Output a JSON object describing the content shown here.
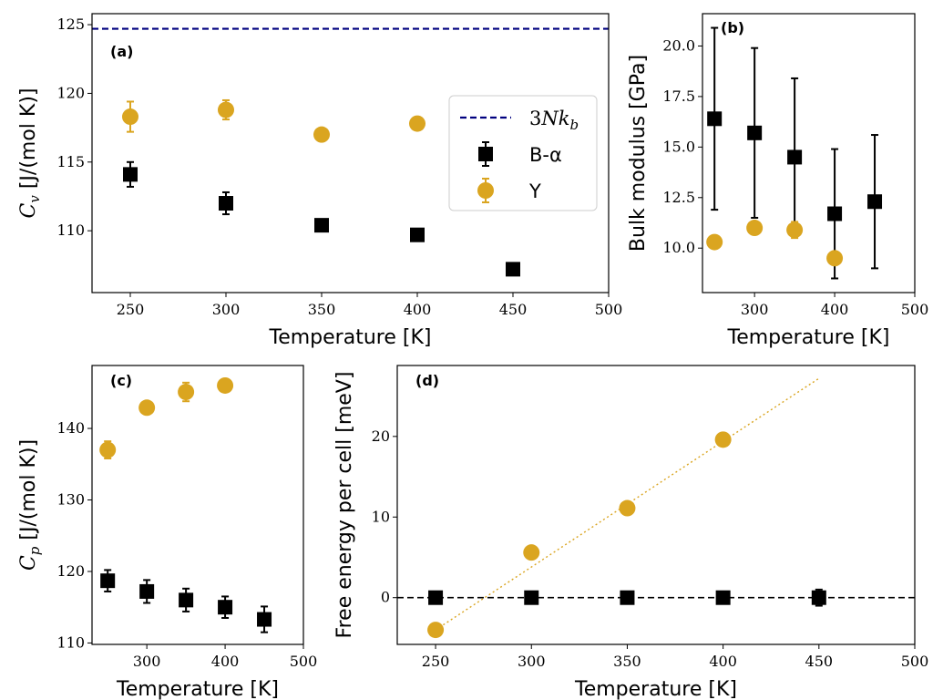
{
  "colors": {
    "black": "#000000",
    "gold": "#daa520",
    "navy": "#00007f"
  },
  "chart_data": [
    {
      "id": "a",
      "panel_label": "(a)",
      "type": "scatter",
      "xlabel": "Temperature [K]",
      "ylabel": "C_v [J/(mol K)]",
      "ylabel_parts": {
        "sym": "C",
        "sub": "v",
        "rest": " [J/(mol K)]"
      },
      "xlim": [
        230,
        500
      ],
      "ylim": [
        105.5,
        125.8
      ],
      "xticks": [
        250,
        300,
        350,
        400,
        450,
        500
      ],
      "yticks": [
        110,
        115,
        120,
        125
      ],
      "hlines": [
        {
          "y": 124.7,
          "color": "#00007f",
          "style": "dashed"
        }
      ],
      "series": [
        {
          "name": "B-α",
          "marker": "square",
          "color": "#000000",
          "x": [
            250,
            300,
            350,
            400,
            450
          ],
          "y": [
            114.1,
            112.0,
            110.4,
            109.7,
            107.2
          ],
          "err": [
            0.9,
            0.8,
            0.2,
            0.4,
            0.1
          ]
        },
        {
          "name": "Y",
          "marker": "circle",
          "color": "#daa520",
          "x": [
            250,
            300,
            350,
            400
          ],
          "y": [
            118.3,
            118.8,
            117.0,
            117.8
          ],
          "err": [
            1.1,
            0.7,
            0.2,
            0.2
          ]
        }
      ],
      "legend": {
        "placement": "center-right",
        "entries": [
          {
            "label_main": "3",
            "label_italic": "Nk",
            "label_sub": "b",
            "kind": "dashed",
            "color": "#00007f"
          },
          {
            "label": "B-α",
            "kind": "square",
            "color": "#000000"
          },
          {
            "label": "Y",
            "kind": "circle",
            "color": "#daa520"
          }
        ]
      }
    },
    {
      "id": "b",
      "panel_label": "(b)",
      "type": "scatter",
      "xlabel": "Temperature [K]",
      "ylabel": "Bulk modulus [GPa]",
      "xlim": [
        235,
        500
      ],
      "ylim": [
        7.8,
        21.6
      ],
      "xticks": [
        300,
        400,
        500
      ],
      "yticks": [
        10.0,
        12.5,
        15.0,
        17.5,
        20.0
      ],
      "series": [
        {
          "name": "B-α",
          "marker": "square",
          "color": "#000000",
          "x": [
            250,
            300,
            350,
            400,
            450
          ],
          "y": [
            16.4,
            15.7,
            14.5,
            11.7,
            12.3
          ],
          "err": [
            4.5,
            4.2,
            3.9,
            3.2,
            3.3
          ]
        },
        {
          "name": "Y",
          "marker": "circle",
          "color": "#daa520",
          "x": [
            250,
            300,
            350,
            400
          ],
          "y": [
            10.3,
            11.0,
            10.9,
            9.5
          ],
          "err": [
            0.1,
            0.1,
            0.4,
            0.1
          ]
        }
      ]
    },
    {
      "id": "c",
      "panel_label": "(c)",
      "type": "scatter",
      "xlabel": "Temperature [K]",
      "ylabel": "C_p [J/(mol K)]",
      "ylabel_parts": {
        "sym": "C",
        "sub": "p",
        "rest": " [J/(mol K)]"
      },
      "xlim": [
        230,
        500
      ],
      "ylim": [
        109.8,
        148.8
      ],
      "xticks": [
        300,
        400,
        500
      ],
      "yticks": [
        110,
        120,
        130,
        140
      ],
      "series": [
        {
          "name": "B-α",
          "marker": "square",
          "color": "#000000",
          "x": [
            250,
            300,
            350,
            400,
            450
          ],
          "y": [
            118.7,
            117.2,
            116.0,
            115.0,
            113.3
          ],
          "err": [
            1.5,
            1.6,
            1.6,
            1.5,
            1.8
          ]
        },
        {
          "name": "Y",
          "marker": "circle",
          "color": "#daa520",
          "x": [
            250,
            300,
            350,
            400
          ],
          "y": [
            137.0,
            142.9,
            145.1,
            146.0
          ],
          "err": [
            1.2,
            0.4,
            1.3,
            0.4
          ]
        }
      ]
    },
    {
      "id": "d",
      "panel_label": "(d)",
      "type": "scatter",
      "xlabel": "Temperature [K]",
      "ylabel": "Free energy per cell [meV]",
      "xlim": [
        230,
        500
      ],
      "ylim": [
        -5.8,
        28.8
      ],
      "xticks": [
        250,
        300,
        350,
        400,
        450,
        500
      ],
      "yticks": [
        0,
        10,
        20
      ],
      "hlines": [
        {
          "y": 0,
          "color": "#000000",
          "style": "dashed"
        }
      ],
      "fit_line": {
        "x": [
          250,
          450
        ],
        "y": [
          -4.0,
          27.2
        ],
        "color": "#daa520",
        "style": "dotted"
      },
      "series": [
        {
          "name": "B-α",
          "marker": "square",
          "color": "#000000",
          "x": [
            250,
            300,
            350,
            400,
            450
          ],
          "y": [
            0,
            0,
            0,
            0,
            0
          ],
          "err": [
            0.3,
            0.3,
            0.3,
            0.5,
            1.0
          ]
        },
        {
          "name": "Y",
          "marker": "circle",
          "color": "#daa520",
          "x": [
            250,
            300,
            350,
            400
          ],
          "y": [
            -4.0,
            5.6,
            11.1,
            19.6
          ],
          "err": [
            0,
            0,
            0,
            0
          ]
        }
      ]
    }
  ]
}
